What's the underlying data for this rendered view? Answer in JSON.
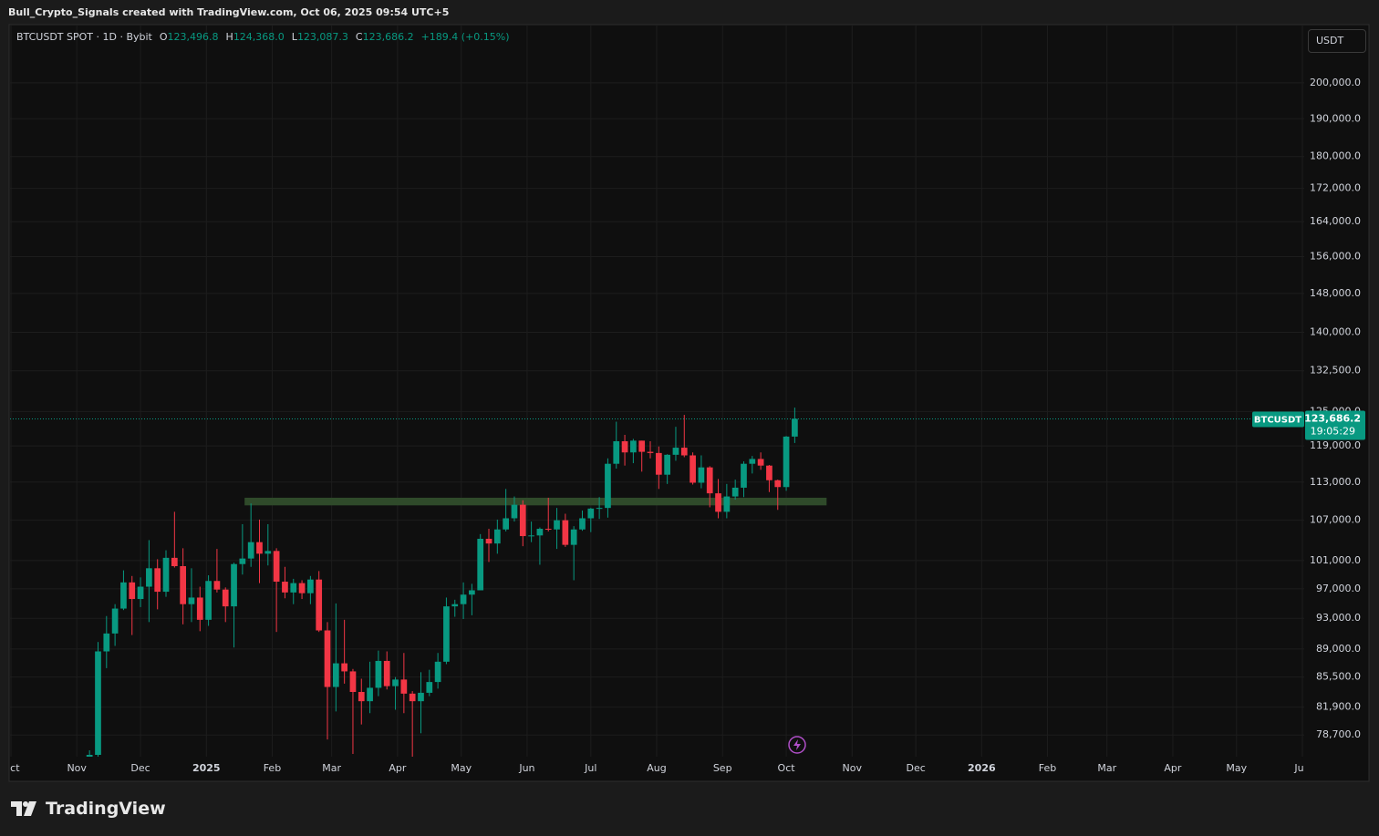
{
  "header": {
    "text": "Bull_Crypto_Signals created with TradingView.com, Oct 06, 2025 09:54 UTC+5"
  },
  "legend": {
    "symbol": "BTCUSDT SPOT · 1D · Bybit",
    "items": [
      {
        "key": "O",
        "value": "123,496.8"
      },
      {
        "key": "H",
        "value": "124,368.0"
      },
      {
        "key": "L",
        "value": "123,087.3"
      },
      {
        "key": "C",
        "value": "123,686.2"
      }
    ],
    "change": "+189.4 (+0.15%)"
  },
  "currency_button": "USDT",
  "footer": {
    "logo": "TradingView"
  },
  "chart_data": {
    "type": "candlestick",
    "log_scale": true,
    "grid": true,
    "up_color": "#089981",
    "down_color": "#f23645",
    "x": [
      35,
      39,
      43,
      47,
      51,
      55,
      59,
      63,
      67,
      71,
      75,
      79,
      83,
      87,
      91,
      95,
      99,
      103,
      107,
      111,
      115,
      119,
      123,
      127,
      131,
      135,
      139,
      143,
      147,
      151,
      155,
      159,
      163,
      167,
      171,
      175,
      179,
      183,
      187,
      191,
      195,
      199,
      203,
      207,
      211,
      215,
      219,
      223,
      227,
      231,
      235,
      239,
      243,
      247,
      251,
      255,
      259,
      263,
      267,
      271,
      275,
      279,
      283,
      287,
      291,
      295,
      299,
      303,
      307,
      311,
      315,
      319,
      323,
      327,
      331,
      335,
      339,
      343,
      347,
      351,
      355,
      359,
      363,
      367
    ],
    "open": [
      69400,
      76500,
      88700,
      91000,
      94300,
      97900,
      95600,
      97300,
      99900,
      96600,
      101400,
      100200,
      94900,
      95800,
      92800,
      98100,
      96900,
      94600,
      100500,
      101300,
      103700,
      102000,
      102400,
      98000,
      96500,
      97800,
      96400,
      98300,
      91400,
      84300,
      87200,
      86200,
      83700,
      82600,
      84200,
      87500,
      84400,
      85200,
      83500,
      82600,
      83600,
      84900,
      87400,
      94600,
      94900,
      96200,
      96800,
      104200,
      103500,
      105600,
      107300,
      109400,
      104600,
      104700,
      105700,
      105600,
      107000,
      103300,
      105600,
      107300,
      108800,
      108900,
      116000,
      119800,
      117900,
      119900,
      118000,
      117800,
      114200,
      117500,
      118700,
      117400,
      112900,
      115400,
      111200,
      108300,
      110700,
      112100,
      116000,
      116800,
      115700,
      113300,
      112200,
      120600
    ],
    "high": [
      77000,
      89900,
      93300,
      94900,
      99600,
      98800,
      98600,
      104000,
      101200,
      102500,
      108300,
      102800,
      99900,
      97300,
      98900,
      102700,
      97200,
      100700,
      106400,
      109600,
      107100,
      106400,
      102800,
      100100,
      98400,
      98200,
      98800,
      99500,
      92500,
      95000,
      92800,
      86500,
      85300,
      87400,
      88800,
      88700,
      85500,
      88500,
      83800,
      86100,
      86400,
      88500,
      95800,
      95500,
      97900,
      97700,
      104900,
      105700,
      107100,
      111900,
      110700,
      110100,
      106800,
      105900,
      110500,
      108900,
      108000,
      106100,
      108500,
      108900,
      110600,
      116900,
      123200,
      120900,
      120200,
      119900,
      119800,
      118900,
      117600,
      122300,
      124400,
      117900,
      117400,
      115600,
      113500,
      112700,
      113400,
      116400,
      117300,
      117900,
      115800,
      113400,
      120700,
      125700
    ],
    "low": [
      68000,
      76300,
      86600,
      89400,
      94100,
      90800,
      94500,
      92500,
      94200,
      95900,
      100000,
      92200,
      92500,
      91300,
      92000,
      96500,
      92500,
      89200,
      99000,
      100100,
      97800,
      100300,
      91200,
      95700,
      94900,
      95600,
      94900,
      91200,
      78200,
      81400,
      84700,
      76600,
      79900,
      81200,
      83200,
      84000,
      81600,
      81200,
      74500,
      78900,
      83200,
      84100,
      87100,
      93200,
      92900,
      93400,
      96800,
      100800,
      102000,
      105300,
      106800,
      103100,
      103700,
      100400,
      105300,
      102700,
      103000,
      98200,
      105400,
      105200,
      107200,
      107400,
      115200,
      115700,
      116100,
      114700,
      116900,
      111900,
      112700,
      116500,
      117100,
      112600,
      112000,
      109000,
      107300,
      107300,
      110200,
      110600,
      114400,
      115000,
      111400,
      108600,
      111600,
      119500
    ],
    "close": [
      76500,
      88700,
      91000,
      94300,
      97900,
      95600,
      97300,
      99900,
      96600,
      101400,
      100200,
      94900,
      95800,
      92800,
      98100,
      96900,
      94600,
      100500,
      101300,
      103700,
      102000,
      102400,
      98000,
      96500,
      97800,
      96400,
      98300,
      91400,
      84300,
      87200,
      86200,
      83700,
      82600,
      84200,
      87500,
      84400,
      85200,
      83500,
      82600,
      83600,
      84900,
      87400,
      94600,
      94900,
      96200,
      96800,
      104200,
      103500,
      105600,
      107300,
      109400,
      104600,
      104700,
      105700,
      105600,
      107000,
      103300,
      105600,
      107300,
      108800,
      108900,
      116000,
      119800,
      117900,
      119900,
      118000,
      117800,
      114200,
      117500,
      118700,
      117400,
      112900,
      115400,
      111200,
      108300,
      110700,
      112100,
      116000,
      116800,
      115700,
      113300,
      112200,
      120600,
      123700
    ],
    "xlim": [
      0,
      608
    ],
    "xticks": [
      {
        "value": 0,
        "label": "Oct"
      },
      {
        "value": 31,
        "label": "Nov"
      },
      {
        "value": 61,
        "label": "Dec"
      },
      {
        "value": 92,
        "label": "2025"
      },
      {
        "value": 123,
        "label": "Feb"
      },
      {
        "value": 151,
        "label": "Mar"
      },
      {
        "value": 182,
        "label": "Apr"
      },
      {
        "value": 212,
        "label": "May"
      },
      {
        "value": 243,
        "label": "Jun"
      },
      {
        "value": 273,
        "label": "Jul"
      },
      {
        "value": 304,
        "label": "Aug"
      },
      {
        "value": 335,
        "label": "Sep"
      },
      {
        "value": 365,
        "label": "Oct"
      },
      {
        "value": 396,
        "label": "Nov"
      },
      {
        "value": 426,
        "label": "Dec"
      },
      {
        "value": 457,
        "label": "2026"
      },
      {
        "value": 488,
        "label": "Feb"
      },
      {
        "value": 516,
        "label": "Mar"
      },
      {
        "value": 547,
        "label": "Apr"
      },
      {
        "value": 577,
        "label": "May"
      },
      {
        "value": 608,
        "label": "Jun"
      }
    ],
    "ylim": [
      76300,
      217100
    ],
    "yticks": [
      {
        "value": 200000,
        "label": "200,000.0"
      },
      {
        "value": 190000,
        "label": "190,000.0"
      },
      {
        "value": 180000,
        "label": "180,000.0"
      },
      {
        "value": 172000,
        "label": "172,000.0"
      },
      {
        "value": 164000,
        "label": "164,000.0"
      },
      {
        "value": 156000,
        "label": "156,000.0"
      },
      {
        "value": 148000,
        "label": "148,000.0"
      },
      {
        "value": 140000,
        "label": "140,000.0"
      },
      {
        "value": 132500,
        "label": "132,500.0"
      },
      {
        "value": 125000,
        "label": "125,000.0"
      },
      {
        "value": 119000,
        "label": "119,000.0"
      },
      {
        "value": 113000,
        "label": "113,000.0"
      },
      {
        "value": 107000,
        "label": "107,000.0"
      },
      {
        "value": 101000,
        "label": "101,000.0"
      },
      {
        "value": 97000,
        "label": "97,000.0"
      },
      {
        "value": 93000,
        "label": "93,000.0"
      },
      {
        "value": 89000,
        "label": "89,000.0"
      },
      {
        "value": 85500,
        "label": "85,500.0"
      },
      {
        "value": 81900,
        "label": "81,900.0"
      },
      {
        "value": 78700,
        "label": "78,700.0"
      }
    ],
    "zone": {
      "start": 110,
      "end": 384,
      "low": 109300,
      "high": 110500,
      "color": "#2f4a2a"
    },
    "last_price": {
      "value": 123686.2,
      "label": "123,686.2",
      "symbol": "BTCUSDT",
      "countdown": "19:05:29",
      "color": "#089981"
    }
  }
}
